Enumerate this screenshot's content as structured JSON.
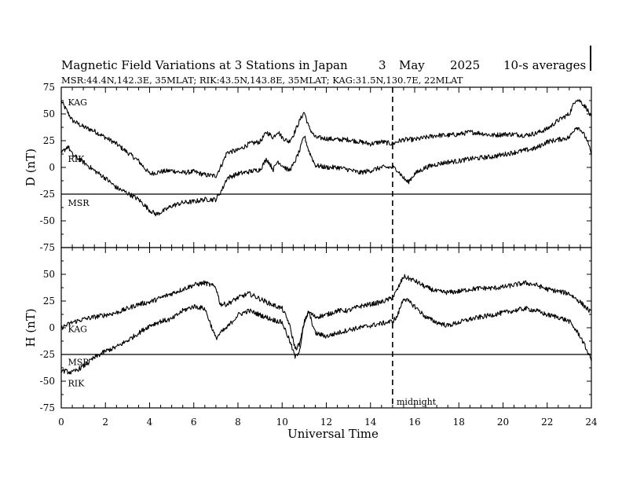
{
  "chart_data": {
    "type": "line",
    "title": "Magnetic Field Variations at 3 Stations in Japan",
    "date": {
      "day": "3",
      "month": "May",
      "year": "2025"
    },
    "averaging": "10-s averages",
    "subtitle": "MSR:44.4N,142.3E, 35MLAT;  RIK:43.5N,143.8E, 35MLAT;  KAG:31.5N,130.7E, 22MLAT",
    "xlabel": "Universal Time",
    "xlim": [
      0,
      24
    ],
    "xticks": [
      "0",
      "2",
      "4",
      "6",
      "8",
      "10",
      "12",
      "14",
      "16",
      "18",
      "20",
      "22",
      "24"
    ],
    "x_minor_step": 0.5,
    "midnight": {
      "x": 15,
      "label": "midnight"
    },
    "grid": false,
    "panels": [
      {
        "ylabel": "D (nT)",
        "ylim": [
          -75,
          75
        ],
        "yticks": [
          "75",
          "50",
          "25",
          "0",
          "-25",
          "-50",
          "-75"
        ],
        "series": [
          {
            "name": "KAG",
            "label_at": [
              0.3,
              61
            ],
            "points": [
              [
                0,
                62
              ],
              [
                0.5,
                44
              ],
              [
                1,
                38
              ],
              [
                1.5,
                34
              ],
              [
                2,
                28
              ],
              [
                2.5,
                22
              ],
              [
                3,
                14
              ],
              [
                3.5,
                6
              ],
              [
                4,
                -6
              ],
              [
                4.5,
                -4
              ],
              [
                5,
                -3
              ],
              [
                5.5,
                -5
              ],
              [
                6,
                -4
              ],
              [
                6.5,
                -7
              ],
              [
                7,
                -8
              ],
              [
                7.3,
                4
              ],
              [
                7.5,
                14
              ],
              [
                8,
                16
              ],
              [
                8.5,
                22
              ],
              [
                9,
                24
              ],
              [
                9.3,
                33
              ],
              [
                9.6,
                28
              ],
              [
                9.8,
                34
              ],
              [
                10,
                28
              ],
              [
                10.3,
                24
              ],
              [
                10.5,
                30
              ],
              [
                10.8,
                44
              ],
              [
                11,
                52
              ],
              [
                11.2,
                38
              ],
              [
                11.5,
                28
              ],
              [
                12,
                27
              ],
              [
                12.5,
                26
              ],
              [
                13,
                26
              ],
              [
                13.5,
                24
              ],
              [
                14,
                22
              ],
              [
                14.5,
                24
              ],
              [
                15,
                22
              ],
              [
                15.2,
                24
              ],
              [
                15.5,
                26
              ],
              [
                16,
                26
              ],
              [
                16.5,
                28
              ],
              [
                17,
                30
              ],
              [
                17.5,
                30
              ],
              [
                18,
                31
              ],
              [
                18.5,
                33
              ],
              [
                19,
                32
              ],
              [
                19.5,
                30
              ],
              [
                20,
                31
              ],
              [
                20.5,
                31
              ],
              [
                21,
                30
              ],
              [
                21.5,
                32
              ],
              [
                22,
                36
              ],
              [
                22.5,
                44
              ],
              [
                23,
                50
              ],
              [
                23.3,
                64
              ],
              [
                23.5,
                62
              ],
              [
                23.8,
                55
              ],
              [
                24,
                46
              ]
            ]
          },
          {
            "name": "RIK",
            "label_at": [
              0.3,
              8
            ],
            "points": [
              [
                0,
                13
              ],
              [
                0.3,
                20
              ],
              [
                0.5,
                12
              ],
              [
                1,
                5
              ],
              [
                1.5,
                -3
              ],
              [
                2,
                -10
              ],
              [
                2.5,
                -19
              ],
              [
                3,
                -24
              ],
              [
                3.5,
                -30
              ],
              [
                4,
                -40
              ],
              [
                4.3,
                -44
              ],
              [
                4.7,
                -40
              ],
              [
                5,
                -36
              ],
              [
                5.5,
                -33
              ],
              [
                6,
                -32
              ],
              [
                6.5,
                -30
              ],
              [
                7,
                -30
              ],
              [
                7.3,
                -20
              ],
              [
                7.5,
                -10
              ],
              [
                8,
                -6
              ],
              [
                8.5,
                -4
              ],
              [
                9,
                -2
              ],
              [
                9.3,
                8
              ],
              [
                9.6,
                -2
              ],
              [
                9.8,
                6
              ],
              [
                10,
                2
              ],
              [
                10.3,
                -3
              ],
              [
                10.5,
                2
              ],
              [
                10.8,
                16
              ],
              [
                11,
                30
              ],
              [
                11.2,
                16
              ],
              [
                11.5,
                2
              ],
              [
                12,
                0
              ],
              [
                12.5,
                0
              ],
              [
                13,
                -2
              ],
              [
                13.5,
                -5
              ],
              [
                14,
                -3
              ],
              [
                14.5,
                0
              ],
              [
                15,
                0
              ],
              [
                15.2,
                -2
              ],
              [
                15.5,
                -10
              ],
              [
                15.7,
                -14
              ],
              [
                16,
                -6
              ],
              [
                16.5,
                0
              ],
              [
                17,
                3
              ],
              [
                17.5,
                5
              ],
              [
                18,
                6
              ],
              [
                18.5,
                8
              ],
              [
                19,
                9
              ],
              [
                19.5,
                10
              ],
              [
                20,
                12
              ],
              [
                20.5,
                14
              ],
              [
                21,
                16
              ],
              [
                21.5,
                18
              ],
              [
                22,
                24
              ],
              [
                22.5,
                26
              ],
              [
                23,
                28
              ],
              [
                23.3,
                38
              ],
              [
                23.5,
                36
              ],
              [
                23.8,
                26
              ],
              [
                24,
                12
              ]
            ]
          },
          {
            "name": "MSR",
            "label_at": [
              0.3,
              -33
            ],
            "points": [
              [
                0,
                -25
              ],
              [
                24,
                -25
              ]
            ]
          }
        ]
      },
      {
        "ylabel": "H (nT)",
        "ylim": [
          -75,
          75
        ],
        "yticks": [
          "75",
          "50",
          "25",
          "0",
          "-25",
          "-50",
          "-75"
        ],
        "series": [
          {
            "name": "KAG",
            "label_at": [
              0.3,
              -1
            ],
            "points": [
              [
                0,
                0
              ],
              [
                0.5,
                5
              ],
              [
                1,
                8
              ],
              [
                1.5,
                10
              ],
              [
                2,
                12
              ],
              [
                2.5,
                14
              ],
              [
                3,
                18
              ],
              [
                3.5,
                22
              ],
              [
                4,
                24
              ],
              [
                4.5,
                28
              ],
              [
                5,
                32
              ],
              [
                5.5,
                36
              ],
              [
                6,
                40
              ],
              [
                6.5,
                42
              ],
              [
                7,
                38
              ],
              [
                7.2,
                22
              ],
              [
                7.5,
                22
              ],
              [
                8,
                28
              ],
              [
                8.5,
                32
              ],
              [
                9,
                27
              ],
              [
                9.5,
                22
              ],
              [
                10,
                18
              ],
              [
                10.3,
                5
              ],
              [
                10.6,
                -20
              ],
              [
                10.8,
                -15
              ],
              [
                11,
                5
              ],
              [
                11.2,
                15
              ],
              [
                11.5,
                10
              ],
              [
                12,
                12
              ],
              [
                12.5,
                16
              ],
              [
                13,
                16
              ],
              [
                13.5,
                20
              ],
              [
                14,
                22
              ],
              [
                14.5,
                24
              ],
              [
                15,
                28
              ],
              [
                15.2,
                35
              ],
              [
                15.5,
                48
              ],
              [
                16,
                44
              ],
              [
                16.5,
                38
              ],
              [
                17,
                34
              ],
              [
                17.5,
                33
              ],
              [
                18,
                34
              ],
              [
                18.5,
                36
              ],
              [
                19,
                37
              ],
              [
                19.5,
                37
              ],
              [
                20,
                38
              ],
              [
                20.5,
                40
              ],
              [
                21,
                42
              ],
              [
                21.5,
                40
              ],
              [
                22,
                36
              ],
              [
                22.5,
                34
              ],
              [
                23,
                32
              ],
              [
                23.5,
                24
              ],
              [
                24,
                14
              ]
            ]
          },
          {
            "name": "RIK",
            "label_at": [
              0.3,
              -52
            ],
            "points": [
              [
                0,
                -40
              ],
              [
                0.5,
                -42
              ],
              [
                1,
                -36
              ],
              [
                1.5,
                -28
              ],
              [
                2,
                -22
              ],
              [
                2.5,
                -18
              ],
              [
                3,
                -12
              ],
              [
                3.5,
                -5
              ],
              [
                4,
                2
              ],
              [
                4.5,
                6
              ],
              [
                5,
                8
              ],
              [
                5.5,
                16
              ],
              [
                6,
                20
              ],
              [
                6.5,
                18
              ],
              [
                7,
                -10
              ],
              [
                7.2,
                -5
              ],
              [
                7.5,
                0
              ],
              [
                8,
                12
              ],
              [
                8.5,
                16
              ],
              [
                9,
                12
              ],
              [
                9.5,
                8
              ],
              [
                10,
                5
              ],
              [
                10.3,
                -10
              ],
              [
                10.6,
                -28
              ],
              [
                10.8,
                -20
              ],
              [
                11,
                5
              ],
              [
                11.2,
                15
              ],
              [
                11.5,
                -5
              ],
              [
                12,
                -8
              ],
              [
                12.5,
                -5
              ],
              [
                13,
                -2
              ],
              [
                13.5,
                0
              ],
              [
                14,
                2
              ],
              [
                14.5,
                4
              ],
              [
                15,
                6
              ],
              [
                15.2,
                10
              ],
              [
                15.5,
                28
              ],
              [
                16,
                20
              ],
              [
                16.5,
                10
              ],
              [
                17,
                5
              ],
              [
                17.5,
                2
              ],
              [
                18,
                5
              ],
              [
                18.5,
                8
              ],
              [
                19,
                10
              ],
              [
                19.5,
                12
              ],
              [
                20,
                14
              ],
              [
                20.5,
                16
              ],
              [
                21,
                18
              ],
              [
                21.5,
                16
              ],
              [
                22,
                12
              ],
              [
                22.5,
                10
              ],
              [
                23,
                6
              ],
              [
                23.5,
                -8
              ],
              [
                24,
                -30
              ]
            ]
          },
          {
            "name": "MSR",
            "label_at": [
              0.3,
              -32
            ],
            "points": [
              [
                0,
                -25
              ],
              [
                24,
                -25
              ]
            ]
          }
        ]
      }
    ]
  }
}
